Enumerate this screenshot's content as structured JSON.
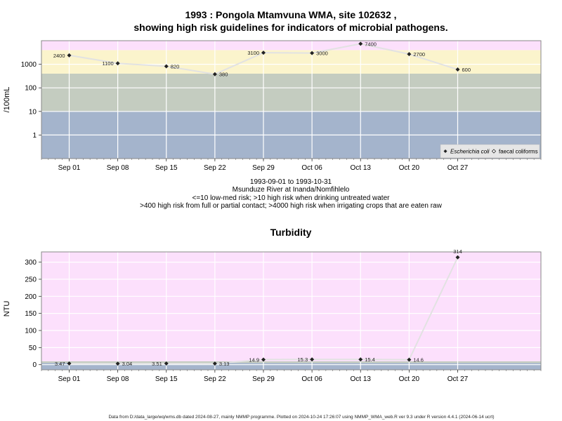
{
  "page": {
    "footer": "Data from D:/data_large/wq/wms.db dated 2024-08-27, mainly NMMP programme. Plotted on 2024-10-24 17:26:07 using NMMP_WMA_web.R ver 9.3 under R version 4.4.1 (2024-06-14 ucrt)"
  },
  "chart_data": [
    {
      "type": "scatter",
      "title_line1": "1993 : Pongola Mtamvuna WMA, site 102632 ,",
      "title_line2": "showing high risk guidelines for indicators of microbial pathogens.",
      "ylabel": "/100mL",
      "yscale": "log",
      "ylim": [
        0.1,
        10000
      ],
      "yticks": [
        {
          "value": 1,
          "label": "1"
        },
        {
          "value": 10,
          "label": "10"
        },
        {
          "value": 100,
          "label": "100"
        },
        {
          "value": 1000,
          "label": "1000"
        }
      ],
      "xlim": [
        "1993-08-28",
        "1993-11-08"
      ],
      "xticks": [
        {
          "date": "1993-09-01",
          "label": "Sep 01"
        },
        {
          "date": "1993-09-08",
          "label": "Sep 08"
        },
        {
          "date": "1993-09-15",
          "label": "Sep 15"
        },
        {
          "date": "1993-09-22",
          "label": "Sep 22"
        },
        {
          "date": "1993-09-29",
          "label": "Sep 29"
        },
        {
          "date": "1993-10-06",
          "label": "Oct 06"
        },
        {
          "date": "1993-10-13",
          "label": "Oct 13"
        },
        {
          "date": "1993-10-20",
          "label": "Oct 20"
        },
        {
          "date": "1993-10-27",
          "label": "Oct 27"
        }
      ],
      "bands": [
        {
          "from": 0.1,
          "to": 10,
          "color": "#a4b4cc"
        },
        {
          "from": 10,
          "to": 400,
          "color": "#c4ccc0"
        },
        {
          "from": 400,
          "to": 4000,
          "color": "#fbf4cc"
        },
        {
          "from": 4000,
          "to": 10000,
          "color": "#fce0fc"
        }
      ],
      "series": [
        {
          "name": "Escherichia coli",
          "x": [
            "1993-09-01",
            "1993-09-08",
            "1993-09-15",
            "1993-09-22",
            "1993-09-29",
            "1993-10-06",
            "1993-10-13",
            "1993-10-20",
            "1993-10-27"
          ],
          "values": [
            2400,
            1100,
            820,
            380,
            3100,
            3000,
            7400,
            2700,
            600
          ],
          "labels": [
            "2400",
            "1100",
            "820",
            "380",
            "3100",
            "3000",
            "7400",
            "2700",
            "600"
          ],
          "label_side": [
            "left",
            "left",
            "right",
            "right",
            "left",
            "right",
            "right",
            "right",
            "right"
          ]
        }
      ],
      "legend": {
        "position": "bottom-right",
        "entries": [
          {
            "name": "Escherichia coli",
            "marker": "filled-diamond"
          },
          {
            "name": "faecal coliforms",
            "marker": "open-diamond"
          }
        ]
      },
      "caption": [
        "1993-09-01 to 1993-10-31",
        "Msunduze River at Inanda/Nomfihlelo",
        "<=10 low-med risk; >10 high risk when drinking untreated water",
        ">400 high risk from full or partial contact; >4000 high risk when irrigating crops that are eaten raw"
      ]
    },
    {
      "type": "scatter",
      "title": "Turbidity",
      "ylabel": "NTU",
      "ylim": [
        -15,
        330
      ],
      "yticks": [
        {
          "value": 0,
          "label": "0"
        },
        {
          "value": 50,
          "label": "50"
        },
        {
          "value": 100,
          "label": "100"
        },
        {
          "value": 150,
          "label": "150"
        },
        {
          "value": 200,
          "label": "200"
        },
        {
          "value": 250,
          "label": "250"
        },
        {
          "value": 300,
          "label": "300"
        }
      ],
      "xlim": [
        "1993-08-28",
        "1993-11-08"
      ],
      "xticks": [
        {
          "date": "1993-09-01",
          "label": "Sep 01"
        },
        {
          "date": "1993-09-08",
          "label": "Sep 08"
        },
        {
          "date": "1993-09-15",
          "label": "Sep 15"
        },
        {
          "date": "1993-09-22",
          "label": "Sep 22"
        },
        {
          "date": "1993-09-29",
          "label": "Sep 29"
        },
        {
          "date": "1993-10-06",
          "label": "Oct 06"
        },
        {
          "date": "1993-10-13",
          "label": "Oct 13"
        },
        {
          "date": "1993-10-20",
          "label": "Oct 20"
        },
        {
          "date": "1993-10-27",
          "label": "Oct 27"
        }
      ],
      "bands": [
        {
          "from": -15,
          "to": 5,
          "color": "#a4b4cc"
        },
        {
          "from": 5,
          "to": 10,
          "color": "#c4ccc0"
        },
        {
          "from": 10,
          "to": 330,
          "color": "#fce0fc"
        }
      ],
      "series": [
        {
          "x": [
            "1993-09-01",
            "1993-09-08",
            "1993-09-15",
            "1993-09-22",
            "1993-09-29",
            "1993-10-06",
            "1993-10-13",
            "1993-10-20",
            "1993-10-27"
          ],
          "values": [
            3.47,
            3.04,
            3.51,
            3.13,
            14.9,
            15.3,
            15.4,
            14.6,
            314
          ],
          "labels": [
            "3.47",
            "3.04",
            "3.51",
            "3.13",
            "14.9",
            "15.3",
            "15.4",
            "14.6",
            "314"
          ],
          "label_side": [
            "left",
            "right",
            "left",
            "right",
            "left",
            "left",
            "right",
            "right",
            "above"
          ]
        }
      ]
    }
  ]
}
